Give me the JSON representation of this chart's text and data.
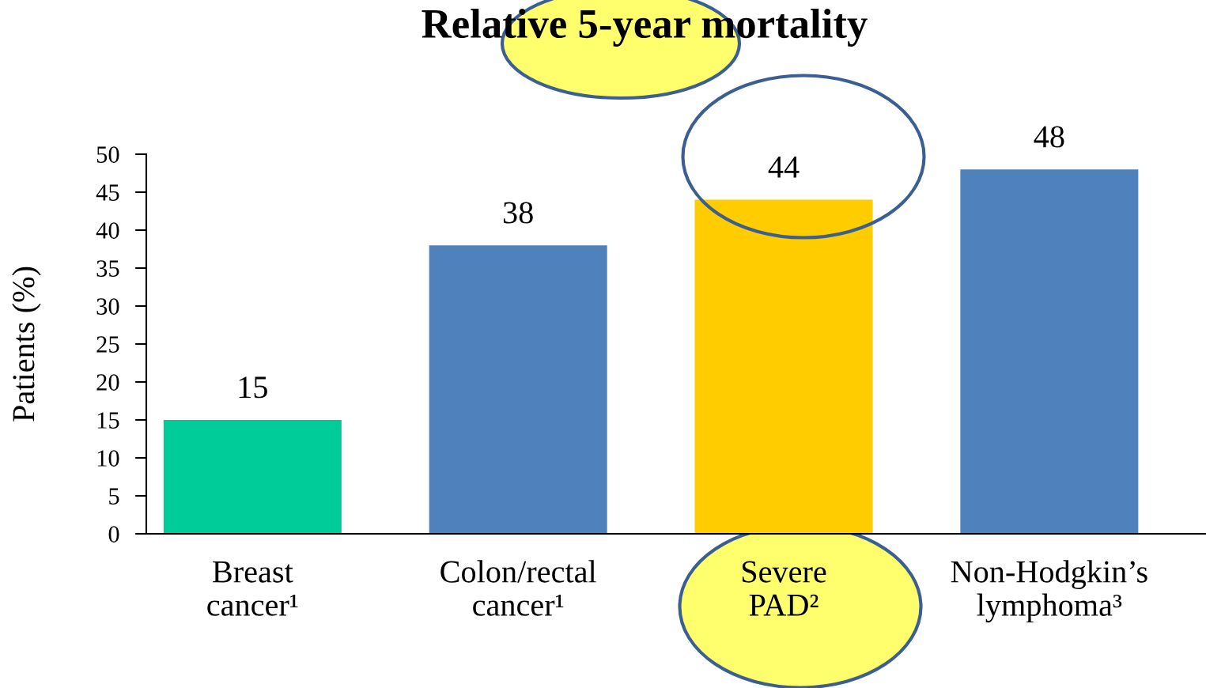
{
  "chart_data": {
    "type": "bar",
    "title": "Relative 5-year mortality",
    "ylabel": "Patients (%)",
    "categories": [
      "Breast\ncancer¹",
      "Colon/rectal\ncancer¹",
      "Severe\nPAD²",
      "Non-Hodgkin’s\nlymphoma³"
    ],
    "values": [
      15,
      38,
      44,
      48
    ],
    "colors": [
      "#00cc99",
      "#4f81bd",
      "#ffcc00",
      "#4f81bd"
    ],
    "ylim": [
      0,
      50
    ],
    "yticks": [
      0,
      5,
      10,
      15,
      20,
      25,
      30,
      35,
      40,
      45,
      50
    ],
    "grid": false,
    "data_labels": true
  }
}
